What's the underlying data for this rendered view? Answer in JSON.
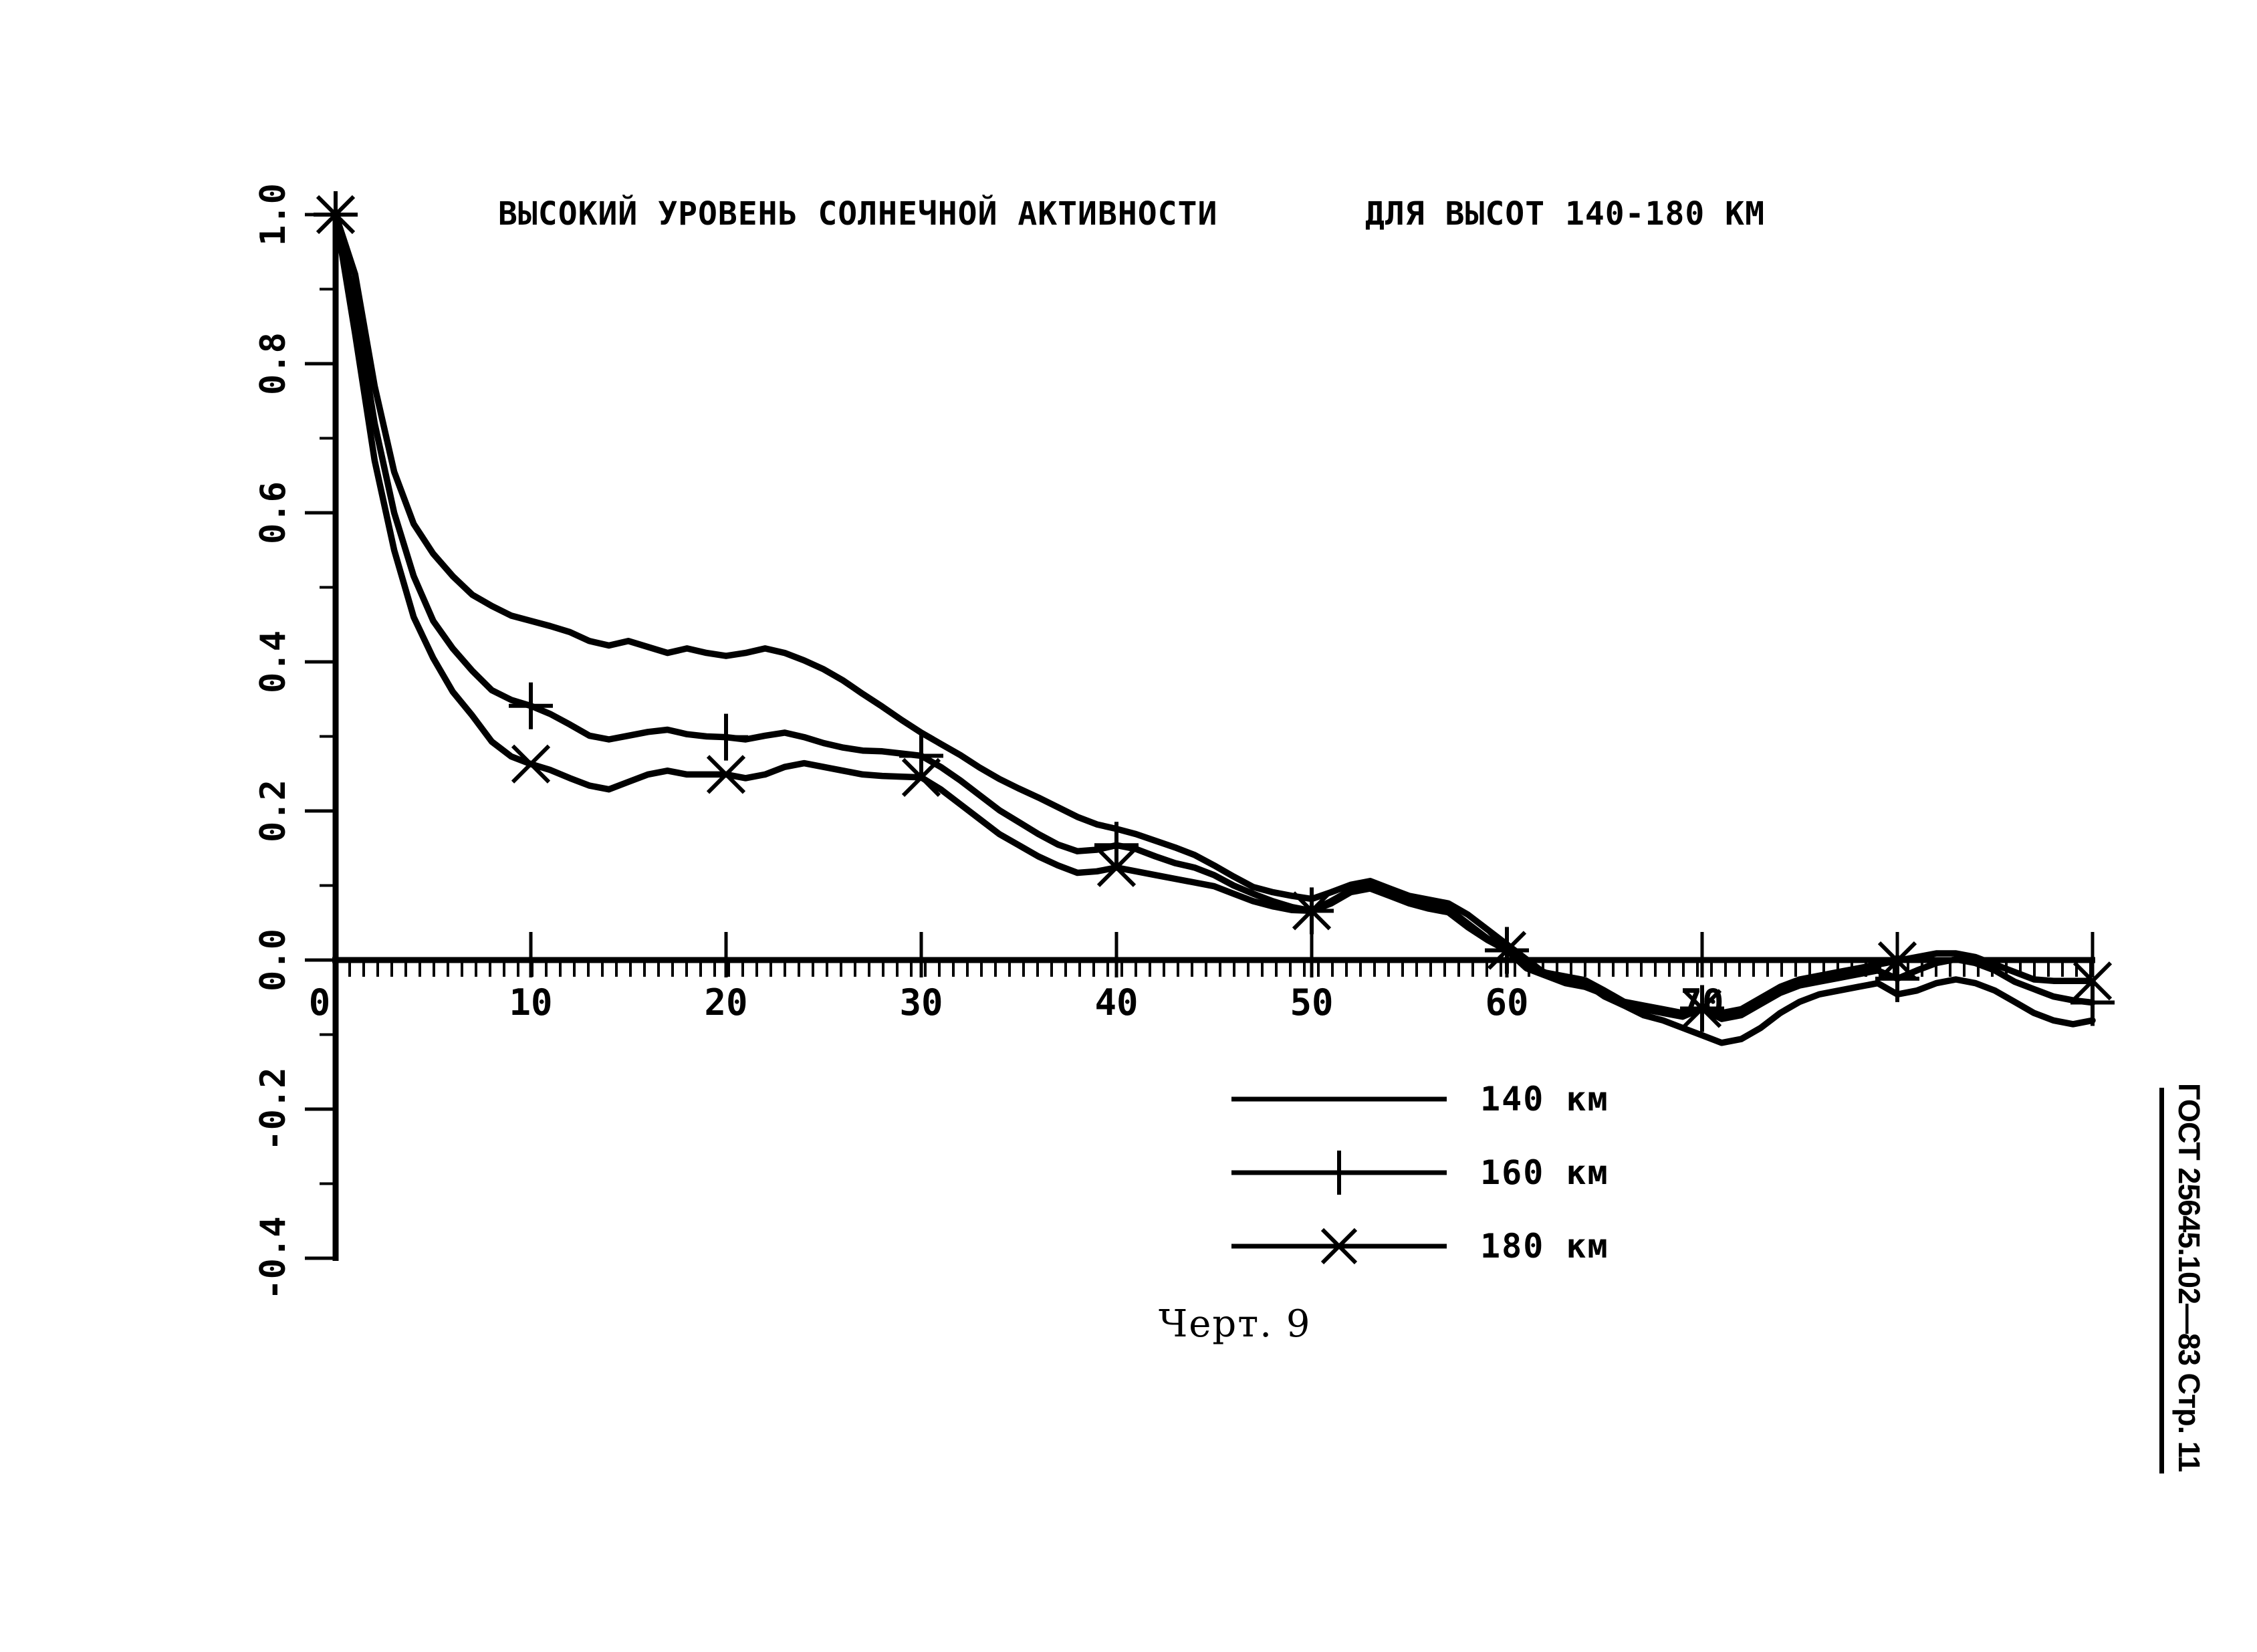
{
  "page": {
    "background": "#ffffff",
    "ink": "#000000"
  },
  "header": {
    "title_left": "ВЫСОКИЙ УРОВЕНЬ СОЛНЕЧНОЙ АКТИВНОСТИ",
    "title_right": "ДЛЯ ВЫСОТ 140-180 КМ"
  },
  "caption": "Черт. 9",
  "sidebar": {
    "text": "ГОСТ 25645.102—83 Стр. 11"
  },
  "chart_data": {
    "type": "line",
    "title": "ВЫСОКИЙ УРОВЕНЬ СОЛНЕЧНОЙ АКТИВНОСТИ",
    "subtitle": "ДЛЯ ВЫСОТ 140-180 КМ",
    "xlabel": "",
    "ylabel": "",
    "xlim": [
      0,
      90
    ],
    "ylim": [
      -0.4,
      1.0
    ],
    "grid": false,
    "legend_position": "below-right",
    "x_axis_value": 0.0,
    "x_major_ticks": [
      10,
      20,
      30,
      40,
      50,
      60,
      70,
      80,
      90
    ],
    "x_tick_labels": [
      {
        "value": 0,
        "label": "0"
      },
      {
        "value": 10,
        "label": "10"
      },
      {
        "value": 20,
        "label": "20"
      },
      {
        "value": 30,
        "label": "30"
      },
      {
        "value": 40,
        "label": "40"
      },
      {
        "value": 50,
        "label": "50"
      },
      {
        "value": 60,
        "label": "60"
      },
      {
        "value": 70,
        "label": "70"
      }
    ],
    "y_ticks": [
      {
        "value": 1.0,
        "label": "1.0"
      },
      {
        "value": 0.8,
        "label": "0.8"
      },
      {
        "value": 0.6,
        "label": "0.6"
      },
      {
        "value": 0.4,
        "label": "0.4"
      },
      {
        "value": 0.2,
        "label": "0.2"
      },
      {
        "value": 0.0,
        "label": "0.0"
      },
      {
        "value": -0.2,
        "label": "-0.2"
      },
      {
        "value": -0.4,
        "label": "-0.4"
      }
    ],
    "x_start": 0,
    "x_step": 1,
    "marker_x": [
      0,
      10,
      20,
      30,
      40,
      50,
      60,
      70,
      80,
      90
    ],
    "series": [
      {
        "name": "140 км",
        "marker": "none",
        "y": [
          1.0,
          0.92,
          0.77,
          0.655,
          0.585,
          0.545,
          0.515,
          0.49,
          0.475,
          0.462,
          0.455,
          0.448,
          0.44,
          0.428,
          0.422,
          0.428,
          0.42,
          0.412,
          0.418,
          0.412,
          0.408,
          0.412,
          0.418,
          0.412,
          0.402,
          0.39,
          0.375,
          0.357,
          0.34,
          0.322,
          0.305,
          0.29,
          0.275,
          0.258,
          0.243,
          0.23,
          0.218,
          0.205,
          0.192,
          0.182,
          0.176,
          0.169,
          0.16,
          0.151,
          0.141,
          0.127,
          0.112,
          0.098,
          0.091,
          0.086,
          0.082,
          0.091,
          0.101,
          0.106,
          0.096,
          0.086,
          0.081,
          0.076,
          0.061,
          0.041,
          0.021,
          0.001,
          -0.019,
          -0.024,
          -0.031,
          -0.049,
          -0.061,
          -0.074,
          -0.081,
          -0.091,
          -0.101,
          -0.111,
          -0.106,
          -0.091,
          -0.071,
          -0.056,
          -0.046,
          -0.041,
          -0.036,
          -0.031,
          -0.046,
          -0.041,
          -0.031,
          -0.026,
          -0.031,
          -0.041,
          -0.056,
          -0.071,
          -0.081,
          -0.086,
          -0.081
        ]
      },
      {
        "name": "160 км",
        "marker": "plus",
        "y": [
          1.0,
          0.88,
          0.72,
          0.6,
          0.515,
          0.455,
          0.418,
          0.388,
          0.362,
          0.349,
          0.341,
          0.33,
          0.316,
          0.301,
          0.296,
          0.301,
          0.306,
          0.309,
          0.303,
          0.3,
          0.299,
          0.296,
          0.301,
          0.305,
          0.299,
          0.291,
          0.285,
          0.281,
          0.28,
          0.277,
          0.274,
          0.259,
          0.241,
          0.221,
          0.201,
          0.185,
          0.169,
          0.155,
          0.146,
          0.148,
          0.154,
          0.149,
          0.139,
          0.13,
          0.124,
          0.114,
          0.1,
          0.089,
          0.079,
          0.071,
          0.066,
          0.079,
          0.094,
          0.099,
          0.089,
          0.079,
          0.074,
          0.069,
          0.049,
          0.029,
          0.013,
          -0.007,
          -0.017,
          -0.022,
          -0.027,
          -0.041,
          -0.056,
          -0.066,
          -0.071,
          -0.076,
          -0.065,
          -0.079,
          -0.074,
          -0.059,
          -0.044,
          -0.034,
          -0.029,
          -0.024,
          -0.019,
          -0.014,
          -0.025,
          -0.014,
          -0.004,
          0.001,
          -0.004,
          -0.014,
          -0.029,
          -0.039,
          -0.049,
          -0.054,
          -0.057
        ]
      },
      {
        "name": "180 км",
        "marker": "cross",
        "y": [
          1.0,
          0.84,
          0.67,
          0.55,
          0.46,
          0.405,
          0.36,
          0.328,
          0.293,
          0.273,
          0.263,
          0.255,
          0.244,
          0.234,
          0.229,
          0.239,
          0.249,
          0.254,
          0.249,
          0.249,
          0.249,
          0.244,
          0.249,
          0.259,
          0.264,
          0.259,
          0.254,
          0.249,
          0.247,
          0.246,
          0.245,
          0.229,
          0.209,
          0.189,
          0.169,
          0.154,
          0.139,
          0.127,
          0.117,
          0.119,
          0.124,
          0.119,
          0.114,
          0.109,
          0.104,
          0.099,
          0.089,
          0.079,
          0.072,
          0.067,
          0.066,
          0.076,
          0.091,
          0.096,
          0.086,
          0.076,
          0.069,
          0.064,
          0.044,
          0.027,
          0.013,
          -0.011,
          -0.021,
          -0.031,
          -0.036,
          -0.046,
          -0.056,
          -0.061,
          -0.066,
          -0.071,
          -0.065,
          -0.071,
          -0.066,
          -0.051,
          -0.036,
          -0.026,
          -0.021,
          -0.016,
          -0.011,
          -0.006,
          -0.001,
          0.004,
          0.009,
          0.009,
          0.004,
          -0.006,
          -0.016,
          -0.026,
          -0.028,
          -0.028,
          -0.028
        ]
      }
    ]
  }
}
